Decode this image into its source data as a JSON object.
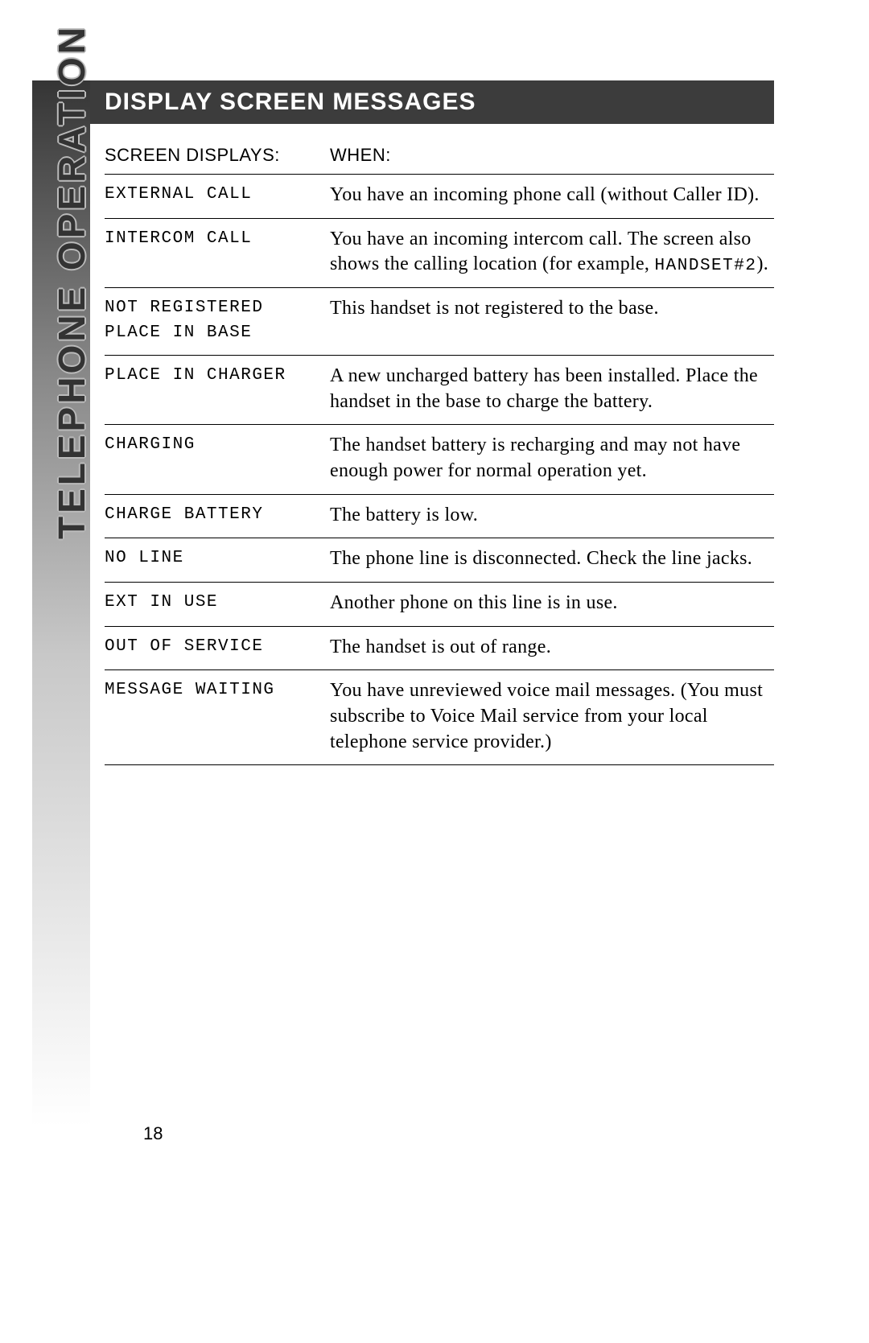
{
  "header": "DISPLAY SCREEN MESSAGES",
  "sidebar": "TELEPHONE OPERATION",
  "page_number": "18",
  "columns": {
    "left": "SCREEN DISPLAYS:",
    "right": "WHEN:"
  },
  "rows": [
    {
      "display": "EXTERNAL CALL",
      "when": "You have an incoming phone call (without Caller ID)."
    },
    {
      "display": "INTERCOM CALL",
      "when_pre": "You have an incoming intercom call. The screen also shows the calling location (for example, ",
      "when_lcd": "HANDSET#2",
      "when_post": ")."
    },
    {
      "display": "NOT REGISTERED\nPLACE IN BASE",
      "when": "This handset is not registered to the base."
    },
    {
      "display": "PLACE IN CHARGER",
      "when": "A new uncharged battery has been installed.  Place the handset in the base to charge the battery."
    },
    {
      "display": "CHARGING",
      "when": "The handset battery is recharging and may not have enough power for normal operation yet."
    },
    {
      "display": "CHARGE BATTERY",
      "when": "The battery is low."
    },
    {
      "display": "NO LINE",
      "when": "The phone line is disconnected. Check the line jacks."
    },
    {
      "display": "EXT IN USE",
      "when": "Another phone on this line is in use."
    },
    {
      "display": "OUT OF SERVICE",
      "when": "The handset is out of range."
    },
    {
      "display": "MESSAGE WAITING",
      "when": "You have unreviewed voice mail messages.  (You must subscribe to Voice Mail service from your local telephone service provider.)"
    }
  ]
}
